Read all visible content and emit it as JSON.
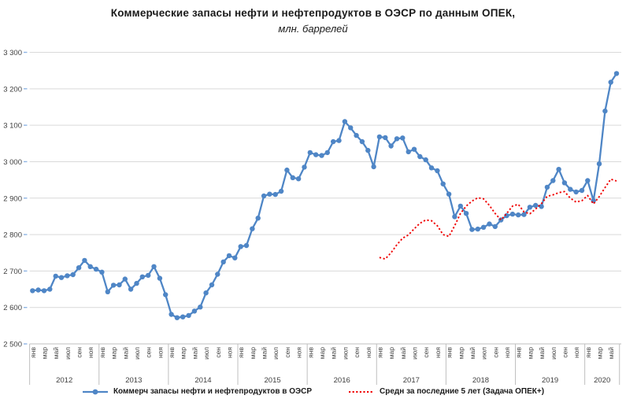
{
  "title": "Коммерческие запасы нефти и нефтепродуктов в ОЭСР по данным ОПЕК,",
  "subtitle": "млн. баррелей",
  "colors": {
    "stocks_line": "#4f86c6",
    "average_line": "#f00000",
    "gridline": "#d9d9d9",
    "axis_line": "#bfbfbf",
    "tick_mark": "#8eb4e3",
    "label_text": "#404040"
  },
  "chart_data": {
    "type": "line",
    "title": "Коммерческие запасы нефти и нефтепродуктов в ОЭСР по данным ОПЕК,",
    "subtitle": "млн. баррелей",
    "grid": "horizontal",
    "legend_position": "bottom",
    "y_axis": {
      "min": 2500,
      "max": 3300,
      "step": 100,
      "tick_labels": [
        "2 500",
        "2 600",
        "2 700",
        "2 800",
        "2 900",
        "3 000",
        "3 100",
        "3 200",
        "3 300"
      ]
    },
    "x_axis": {
      "unit": "month",
      "months_per_year": 12,
      "label_every": 2,
      "years": [
        {
          "label": "2012",
          "month_labels": [
            "янв",
            "мар",
            "май",
            "июл",
            "сен",
            "ноя"
          ]
        },
        {
          "label": "2013",
          "month_labels": [
            "янв",
            "мар",
            "май",
            "июл",
            "сен",
            "ноя"
          ]
        },
        {
          "label": "2014",
          "month_labels": [
            "янв",
            "мар",
            "май",
            "июл",
            "сен",
            "ноя"
          ]
        },
        {
          "label": "2015",
          "month_labels": [
            "янв",
            "мар",
            "май",
            "июл",
            "сен",
            "ноя"
          ]
        },
        {
          "label": "2016",
          "month_labels": [
            "янв",
            "мар",
            "май",
            "июл",
            "сен",
            "ноя"
          ]
        },
        {
          "label": "2017",
          "month_labels": [
            "янв",
            "мар",
            "май",
            "июл",
            "сен",
            "ноя"
          ]
        },
        {
          "label": "2018",
          "month_labels": [
            "янв",
            "мар",
            "май",
            "июл",
            "сен",
            "ноя"
          ]
        },
        {
          "label": "2019",
          "month_labels": [
            "янв",
            "мар",
            "май",
            "июл",
            "сен",
            "ноя"
          ]
        },
        {
          "label": "2020",
          "month_labels": [
            "янв",
            "мар",
            "май"
          ],
          "n_months": 6
        }
      ]
    },
    "series": [
      {
        "name": "Коммерч запасы нефти и нефтепродуктов в ОЭСР",
        "color": "#4f86c6",
        "style": "solid_with_markers",
        "start": "2012-01",
        "start_index": 0,
        "values": [
          2646,
          2648,
          2646,
          2650,
          2686,
          2682,
          2687,
          2690,
          2709,
          2729,
          2712,
          2705,
          2697,
          2643,
          2661,
          2662,
          2678,
          2650,
          2666,
          2684,
          2688,
          2712,
          2680,
          2635,
          2581,
          2572,
          2574,
          2578,
          2590,
          2601,
          2640,
          2662,
          2691,
          2725,
          2742,
          2736,
          2767,
          2770,
          2816,
          2845,
          2906,
          2911,
          2910,
          2919,
          2977,
          2956,
          2953,
          2985,
          3025,
          3019,
          3017,
          3025,
          3055,
          3058,
          3110,
          3093,
          3072,
          3055,
          3031,
          2986,
          3068,
          3066,
          3043,
          3063,
          3065,
          3027,
          3034,
          3014,
          3005,
          2983,
          2975,
          2939,
          2911,
          2849,
          2878,
          2858,
          2814,
          2815,
          2820,
          2829,
          2822,
          2840,
          2852,
          2856,
          2854,
          2855,
          2875,
          2880,
          2877,
          2930,
          2948,
          2979,
          2942,
          2924,
          2917,
          2921,
          2948,
          2893,
          2994,
          3139,
          3218,
          3242
        ]
      },
      {
        "name": "Средн за последние 5 лет (Задача ОПЕК+)",
        "color": "#f00000",
        "style": "dotted",
        "start": "2017-01",
        "start_index": 60,
        "values": [
          2737,
          2733,
          2750,
          2772,
          2790,
          2799,
          2816,
          2831,
          2840,
          2838,
          2824,
          2800,
          2795,
          2824,
          2858,
          2878,
          2892,
          2901,
          2898,
          2880,
          2858,
          2840,
          2858,
          2878,
          2883,
          2862,
          2857,
          2870,
          2885,
          2905,
          2909,
          2915,
          2918,
          2900,
          2889,
          2893,
          2907,
          2884,
          2904,
          2929,
          2952,
          2947
        ]
      }
    ]
  }
}
